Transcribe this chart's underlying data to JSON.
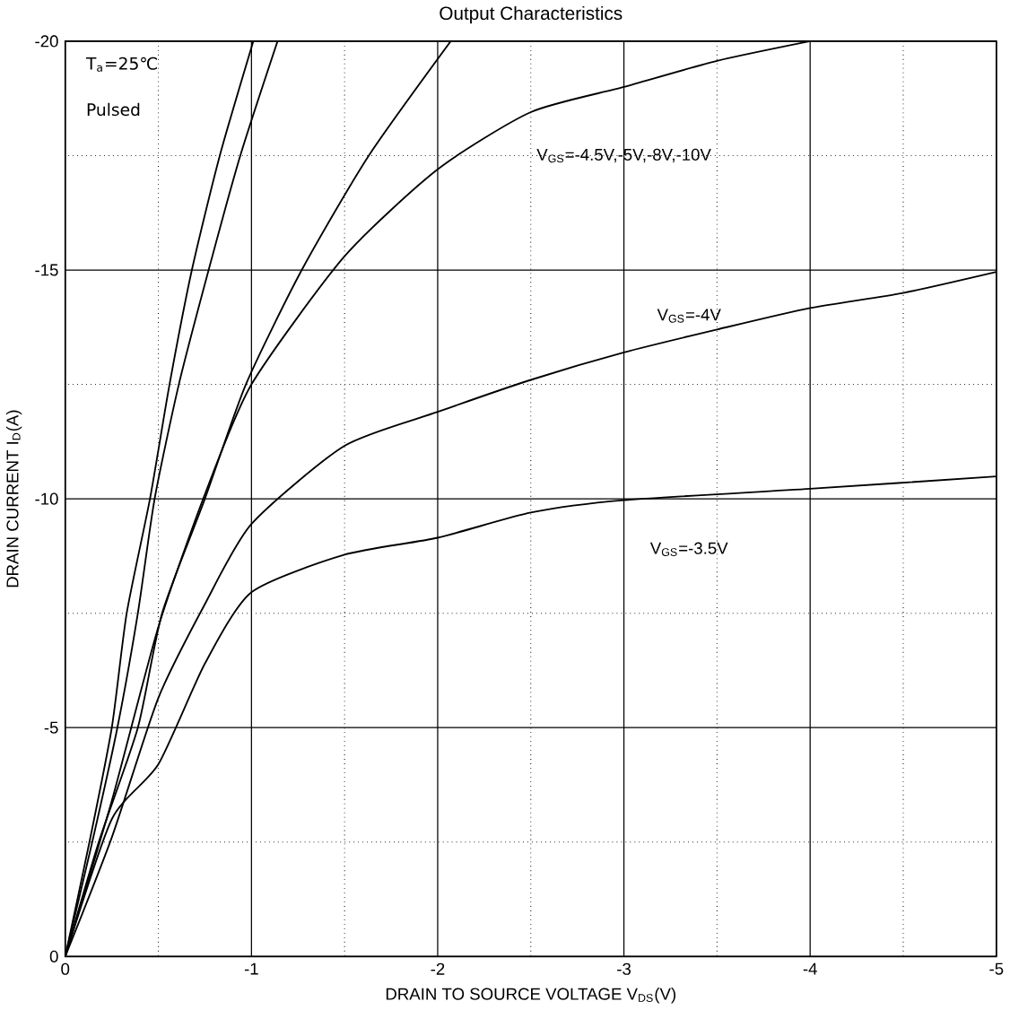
{
  "chart_data": {
    "type": "line",
    "title": "Output Characteristics",
    "xlabel": "DRAIN TO SOURCE VOLTAGE V$_{DS}$(V)",
    "ylabel": "DRAIN CURRENT I$_{D}$(A)",
    "xlim": [
      0,
      -5
    ],
    "ylim": [
      0,
      -20
    ],
    "xticks": [
      0,
      -1,
      -2,
      -3,
      -4,
      -5
    ],
    "yticks": [
      0,
      -5,
      -10,
      -15,
      -20
    ],
    "grid": true,
    "marker": "none",
    "line_style": "solid",
    "series": [
      {
        "color": "#000000",
        "x": [
          0,
          -0.13,
          -0.25,
          -0.33,
          -0.455,
          -0.56,
          -0.68,
          -0.83,
          -1.01
        ],
        "values": [
          0,
          -2.5,
          -5,
          -7.5,
          -10,
          -12.5,
          -15,
          -17.5,
          -20
        ]
      },
      {
        "color": "#000000",
        "x": [
          0,
          -0.145,
          -0.28,
          -0.39,
          -0.48,
          -0.61,
          -0.77,
          -0.94,
          -1.14
        ],
        "values": [
          0,
          -2.5,
          -5,
          -7.5,
          -10,
          -12.5,
          -15,
          -17.5,
          -20
        ]
      },
      {
        "color": "#000000",
        "x": [
          0,
          -0.18,
          -0.39,
          -0.52,
          -0.75,
          -0.97,
          -1.27,
          -1.63,
          -2.07
        ],
        "values": [
          0,
          -2.5,
          -5,
          -7.5,
          -10,
          -12.5,
          -15,
          -17.5,
          -20
        ]
      },
      {
        "color": "#000000",
        "x": [
          0,
          -0.25,
          -0.5,
          -0.75,
          -1,
          -1.5,
          -2,
          -2.5,
          -3,
          -3.5,
          -4
        ],
        "values": [
          0,
          -3.4,
          -7.2,
          -10.1,
          -12.5,
          -15.3,
          -17.2,
          -18.45,
          -19.0,
          -19.57,
          -20
        ]
      },
      {
        "color": "#000000",
        "x": [
          0,
          -0.25,
          -0.5,
          -0.75,
          -1,
          -1.5,
          -2,
          -2.5,
          -3,
          -3.5,
          -4,
          -4.5,
          -5
        ],
        "values": [
          0,
          -2.6,
          -5.65,
          -7.7,
          -9.45,
          -11.16,
          -11.9,
          -12.6,
          -13.2,
          -13.7,
          -14.17,
          -14.5,
          -14.96
        ]
      },
      {
        "color": "#000000",
        "x": [
          0,
          -0.25,
          -0.5,
          -0.75,
          -1,
          -1.5,
          -2,
          -2.5,
          -3,
          -4,
          -5
        ],
        "values": [
          0,
          -3.0,
          -4.2,
          -6.4,
          -7.96,
          -8.78,
          -9.15,
          -9.7,
          -9.97,
          -10.22,
          -10.49
        ]
      }
    ],
    "annotations": [
      "T$_{a}$=25℃",
      "Pulsed",
      "V$_{GS}$=-4.5V,-5V,-8V,-10V",
      "V$_{GS}$=-4V",
      "V$_{GS}$=-3.5V"
    ]
  }
}
